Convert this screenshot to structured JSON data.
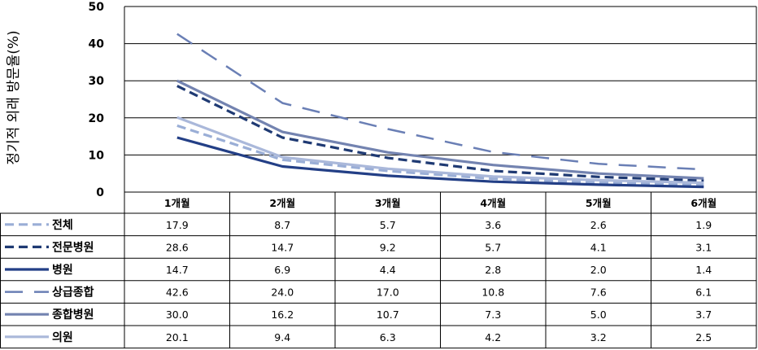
{
  "chart_data": {
    "type": "line",
    "title": "",
    "xlabel": "",
    "ylabel": "정기적 외래 방문율(%)",
    "ylim": [
      0,
      50
    ],
    "yticks": [
      0,
      10,
      20,
      30,
      40,
      50
    ],
    "grid": true,
    "legend_placement": "data-table",
    "categories": [
      "1개월",
      "2개월",
      "3개월",
      "4개월",
      "5개월",
      "6개월"
    ],
    "series": [
      {
        "name": "전체",
        "values": [
          17.9,
          8.7,
          5.7,
          3.6,
          2.6,
          1.9
        ],
        "display": [
          "17.9",
          "8.7",
          "5.7",
          "3.6",
          "2.6",
          "1.9"
        ],
        "color": "#9aaed6",
        "style": "dashed"
      },
      {
        "name": "전문병원",
        "values": [
          28.6,
          14.7,
          9.2,
          5.7,
          4.1,
          3.1
        ],
        "display": [
          "28.6",
          "14.7",
          "9.2",
          "5.7",
          "4.1",
          "3.1"
        ],
        "color": "#1f3a73",
        "style": "dashed"
      },
      {
        "name": "병원",
        "values": [
          14.7,
          6.9,
          4.4,
          2.8,
          2.0,
          1.4
        ],
        "display": [
          "14.7",
          "6.9",
          "4.4",
          "2.8",
          "2.0",
          "1.4"
        ],
        "color": "#233f86",
        "style": "solid"
      },
      {
        "name": "상급종합",
        "values": [
          42.6,
          24.0,
          17.0,
          10.8,
          7.6,
          6.1
        ],
        "display": [
          "42.6",
          "24.0",
          "17.0",
          "10.8",
          "7.6",
          "6.1"
        ],
        "color": "#6a7fb5",
        "style": "long-dash"
      },
      {
        "name": "종합병원",
        "values": [
          30.0,
          16.2,
          10.7,
          7.3,
          5.0,
          3.7
        ],
        "display": [
          "30.0",
          "16.2",
          "10.7",
          "7.3",
          "5.0",
          "3.7"
        ],
        "color": "#7383b0",
        "style": "solid"
      },
      {
        "name": "의원",
        "values": [
          20.1,
          9.4,
          6.3,
          4.2,
          3.2,
          2.5
        ],
        "display": [
          "20.1",
          "9.4",
          "6.3",
          "4.2",
          "3.2",
          "2.5"
        ],
        "color": "#aab8da",
        "style": "solid"
      }
    ]
  }
}
